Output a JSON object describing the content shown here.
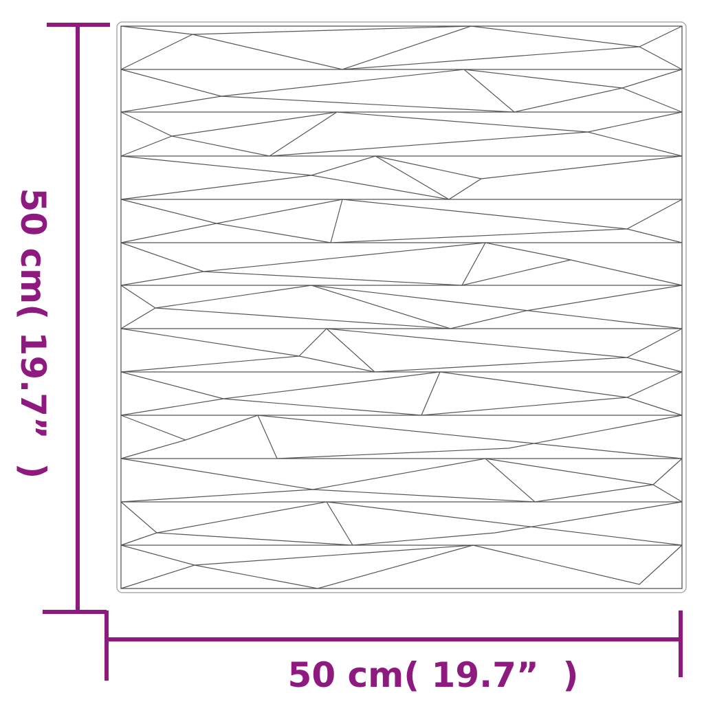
{
  "width_label": "50 cm( 19.7”  )",
  "height_label": "50 cm( 19.7”  )",
  "colors": {
    "dimension": "#8e1a80",
    "panel_line": "#555555",
    "panel_border": "#999999"
  }
}
